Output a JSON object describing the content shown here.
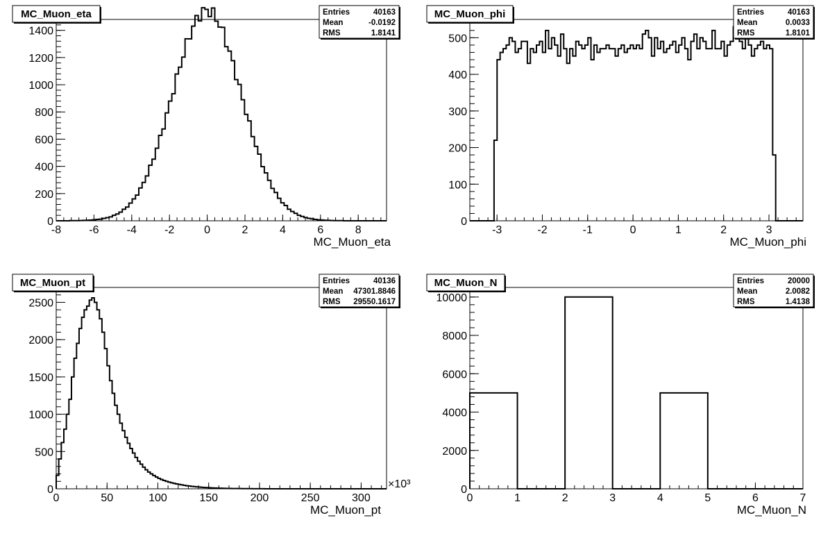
{
  "chart_data": [
    {
      "type": "histogram",
      "title": "MC_Muon_eta",
      "xlabel": "MC_Muon_eta",
      "xlim": [
        -8,
        9.5
      ],
      "ylim": [
        0,
        1480
      ],
      "x_ticks": [
        -8,
        -6,
        -4,
        -2,
        0,
        2,
        4,
        6,
        8
      ],
      "y_ticks": [
        0,
        200,
        400,
        600,
        800,
        1000,
        1200,
        1400
      ],
      "stats": {
        "Entries": "40163",
        "Mean": "-0.0192",
        "RMS": "1.8141"
      },
      "gauss": {
        "mean": -0.0192,
        "sigma": 1.8141,
        "entries": 40163,
        "bin_width": 0.175,
        "bin_start": -8
      },
      "bins": [
        {
          "x_low": -8,
          "x_high": 9.5
        }
      ]
    },
    {
      "type": "histogram",
      "title": "MC_Muon_phi",
      "xlabel": "MC_Muon_phi",
      "xlim": [
        -3.6,
        3.75
      ],
      "ylim": [
        0,
        550
      ],
      "x_ticks": [
        -3,
        -2,
        -1,
        0,
        1,
        2,
        3
      ],
      "y_ticks": [
        0,
        100,
        200,
        300,
        400,
        500
      ],
      "stats": {
        "Entries": "40163",
        "Mean": "0.0033",
        "RMS": "1.8101"
      },
      "values": [
        0,
        0,
        0,
        0,
        0,
        0,
        0,
        0,
        220,
        440,
        460,
        470,
        480,
        500,
        490,
        460,
        470,
        490,
        490,
        430,
        470,
        460,
        480,
        490,
        460,
        520,
        470,
        500,
        480,
        450,
        510,
        470,
        430,
        470,
        450,
        490,
        480,
        470,
        480,
        500,
        440,
        480,
        460,
        470,
        470,
        480,
        470,
        470,
        450,
        470,
        480,
        460,
        470,
        480,
        470,
        480,
        470,
        510,
        520,
        500,
        450,
        500,
        470,
        490,
        460,
        470,
        480,
        490,
        460,
        480,
        500,
        470,
        440,
        490,
        510,
        470,
        500,
        490,
        470,
        470,
        520,
        470,
        470,
        490,
        450,
        480,
        490,
        530,
        520,
        490,
        470,
        500,
        480,
        450,
        470,
        480,
        490,
        470,
        480,
        470,
        180,
        0,
        0,
        0,
        0,
        0,
        0,
        0,
        0,
        0
      ],
      "bins": [
        {
          "x_low": -3.6,
          "x_high": 3.75
        }
      ]
    },
    {
      "type": "histogram",
      "title": "MC_Muon_pt",
      "xlabel": "MC_Muon_pt",
      "x_scale_label": "×10³",
      "xlim": [
        0,
        325
      ],
      "ylim": [
        0,
        2700
      ],
      "x_ticks": [
        0,
        50,
        100,
        150,
        200,
        250,
        300
      ],
      "y_ticks": [
        0,
        500,
        1000,
        1500,
        2000,
        2500
      ],
      "stats": {
        "Entries": "40136",
        "Mean": "47301.8846",
        "RMS": "29550.1617"
      },
      "values": [
        180,
        400,
        620,
        800,
        1000,
        1200,
        1500,
        1750,
        1950,
        2150,
        2300,
        2400,
        2450,
        2530,
        2560,
        2500,
        2400,
        2280,
        2100,
        1880,
        1650,
        1450,
        1280,
        1120,
        1000,
        880,
        780,
        690,
        610,
        540,
        480,
        420,
        370,
        330,
        290,
        255,
        225,
        200,
        178,
        158,
        140,
        125,
        112,
        100,
        90,
        80,
        72,
        65,
        58,
        52,
        46,
        41,
        37,
        33,
        29,
        26,
        23,
        20,
        18,
        16,
        14,
        12,
        10,
        9,
        8,
        7,
        6,
        5,
        5,
        4,
        4,
        3,
        3,
        2,
        2,
        2,
        2,
        1,
        1,
        1,
        1,
        1,
        0,
        0,
        0,
        0,
        0,
        0,
        0,
        0,
        0,
        0,
        0,
        0,
        0,
        0,
        0,
        0,
        0,
        0,
        0,
        0,
        0,
        0,
        0,
        0,
        0,
        0,
        0,
        0,
        0,
        0,
        0,
        0,
        0,
        0,
        0,
        0,
        0,
        0,
        0,
        0,
        0,
        0,
        0,
        0,
        0,
        0,
        0,
        0
      ],
      "bins": [
        {
          "x_low": 0,
          "x_high": 325
        }
      ]
    },
    {
      "type": "histogram",
      "title": "MC_Muon_N",
      "xlabel": "MC_Muon_N",
      "xlim": [
        0,
        7
      ],
      "ylim": [
        0,
        10500
      ],
      "x_ticks": [
        0,
        1,
        2,
        3,
        4,
        5,
        6,
        7
      ],
      "y_ticks": [
        0,
        2000,
        4000,
        6000,
        8000,
        10000
      ],
      "stats": {
        "Entries": "20000",
        "Mean": "2.0082",
        "RMS": "1.4138"
      },
      "values": [
        5000,
        0,
        10000,
        0,
        5000,
        0,
        0
      ],
      "bins": [
        {
          "x_low": 0,
          "x_high": 7
        }
      ]
    }
  ]
}
